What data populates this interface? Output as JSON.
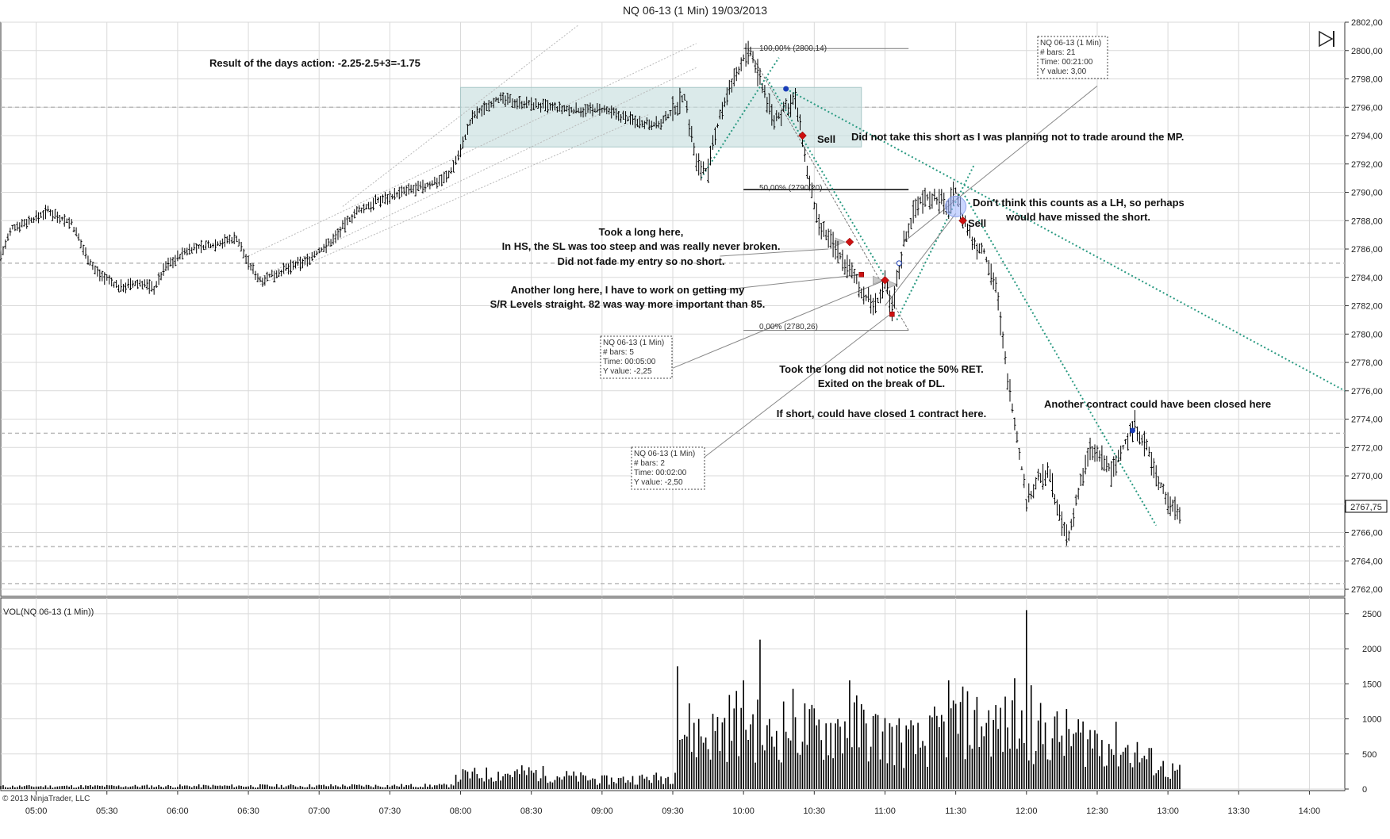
{
  "title": "NQ 06-13 (1 Min)  19/03/2013",
  "copyright": "© 2013 NinjaTrader, LLC",
  "volume_label": "VOL(NQ 06-13 (1 Min))",
  "last_price_label": "2767,75",
  "colors": {
    "bar": "#000000",
    "grid": "#d9d9d9",
    "zone": "#c7dede",
    "trend_dotted": "#2a9a82",
    "channel": "#b9b9b9",
    "sell_marker": "#cc1111",
    "blue_marker": "#1a3db8",
    "highlight": "#9fb4ff"
  },
  "annotations": {
    "result": "Result of the days action: -2.25-2.5+3=-1.75",
    "sell1": "Sell",
    "sell2": "Sell",
    "no_short": "Did not take this short as I was planning not to trade around the MP.",
    "lh_line1": "Don't think this counts as a LH, so perhaps",
    "lh_line2": "would have missed the short.",
    "long1_line1": "Took a long here,",
    "long1_line2": "In HS, the SL was too steep and was really never broken.",
    "long1_line3": "Did not fade my entry so no short.",
    "long2_line1": "Another long here, I have to work on getting my",
    "long2_line2": "S/R Levels straight. 82 was way more important than 85.",
    "long3_line1": "Took the long did not notice the 50% RET.",
    "long3_line2": "Exited on the break of DL.",
    "short_close": "If short, could have closed 1 contract here.",
    "another_contract": "Another contract could have been closed here"
  },
  "fib": {
    "level_100": "100,00% (2800,14)",
    "level_50": "50,00% (2790,20)",
    "level_0": "0,00% (2780,26)"
  },
  "info_boxes": [
    {
      "title": "NQ 06-13 (1 Min)",
      "bars": "# bars:   21",
      "time": "Time:    00:21:00",
      "yvalue": "Y value: 3,00"
    },
    {
      "title": "NQ 06-13 (1 Min)",
      "bars": "# bars:   5",
      "time": "Time:    00:05:00",
      "yvalue": "Y value: -2,25"
    },
    {
      "title": "NQ 06-13 (1 Min)",
      "bars": "# bars:   2",
      "time": "Time:    00:02:00",
      "yvalue": "Y value: -2,50"
    }
  ],
  "chart_data": [
    {
      "type": "ohlc",
      "title": "NQ 06-13 (1 Min)  19/03/2013",
      "x_ticks": [
        "05:00",
        "05:30",
        "06:00",
        "06:30",
        "07:00",
        "07:30",
        "08:00",
        "08:30",
        "09:00",
        "09:30",
        "10:00",
        "10:30",
        "11:00",
        "11:30",
        "12:00",
        "12:30",
        "13:00",
        "13:30",
        "14:00"
      ],
      "y_ticks": [
        "2762,00",
        "2764,00",
        "2766,00",
        "2768,00",
        "2770,00",
        "2772,00",
        "2774,00",
        "2776,00",
        "2778,00",
        "2780,00",
        "2782,00",
        "2784,00",
        "2786,00",
        "2788,00",
        "2790,00",
        "2792,00",
        "2794,00",
        "2796,00",
        "2798,00",
        "2800,00",
        "2802,00"
      ],
      "ylim": [
        2761.5,
        2802
      ],
      "xlim": [
        "04:45",
        "14:15"
      ],
      "horizontal_dashed_levels": [
        2796,
        2785,
        2773,
        2765,
        2762.4
      ],
      "price_path": [
        [
          "04:45",
          2785.5
        ],
        [
          "04:50",
          2787.5
        ],
        [
          "05:00",
          2788.2
        ],
        [
          "05:05",
          2788.7
        ],
        [
          "05:15",
          2787.8
        ],
        [
          "05:20",
          2786.0
        ],
        [
          "05:25",
          2784.5
        ],
        [
          "05:35",
          2783.3
        ],
        [
          "05:45",
          2783.6
        ],
        [
          "05:50",
          2783.2
        ],
        [
          "05:55",
          2784.8
        ],
        [
          "06:05",
          2786.0
        ],
        [
          "06:15",
          2786.3
        ],
        [
          "06:25",
          2786.8
        ],
        [
          "06:30",
          2785.0
        ],
        [
          "06:35",
          2783.8
        ],
        [
          "06:45",
          2784.5
        ],
        [
          "06:55",
          2785.2
        ],
        [
          "07:05",
          2786.5
        ],
        [
          "07:15",
          2788.5
        ],
        [
          "07:25",
          2789.4
        ],
        [
          "07:35",
          2790.0
        ],
        [
          "07:45",
          2790.4
        ],
        [
          "07:55",
          2791.2
        ],
        [
          "08:00",
          2793.0
        ],
        [
          "08:05",
          2795.3
        ],
        [
          "08:15",
          2796.6
        ],
        [
          "08:30",
          2796.2
        ],
        [
          "08:45",
          2795.8
        ],
        [
          "09:00",
          2795.8
        ],
        [
          "09:15",
          2795.0
        ],
        [
          "09:25",
          2794.8
        ],
        [
          "09:35",
          2796.8
        ],
        [
          "09:40",
          2792.0
        ],
        [
          "09:45",
          2791.5
        ],
        [
          "09:50",
          2795.5
        ],
        [
          "09:55",
          2797.5
        ],
        [
          "10:00",
          2799.5
        ],
        [
          "10:03",
          2799.8
        ],
        [
          "10:08",
          2797.5
        ],
        [
          "10:13",
          2795.0
        ],
        [
          "10:18",
          2796.0
        ],
        [
          "10:22",
          2796.5
        ],
        [
          "10:25",
          2793.5
        ],
        [
          "10:28",
          2790.5
        ],
        [
          "10:32",
          2787.5
        ],
        [
          "10:38",
          2786.3
        ],
        [
          "10:43",
          2785.0
        ],
        [
          "10:47",
          2784.0
        ],
        [
          "10:52",
          2782.5
        ],
        [
          "10:56",
          2782.0
        ],
        [
          "11:00",
          2783.5
        ],
        [
          "11:03",
          2781.8
        ],
        [
          "11:08",
          2786.5
        ],
        [
          "11:13",
          2789.0
        ],
        [
          "11:18",
          2789.8
        ],
        [
          "11:22",
          2789.5
        ],
        [
          "11:27",
          2789.0
        ],
        [
          "11:30",
          2790.2
        ],
        [
          "11:33",
          2788.2
        ],
        [
          "11:37",
          2786.5
        ],
        [
          "11:42",
          2785.8
        ],
        [
          "11:47",
          2783.5
        ],
        [
          "11:51",
          2778.0
        ],
        [
          "11:55",
          2774.0
        ],
        [
          "12:00",
          2768.2
        ],
        [
          "12:05",
          2769.8
        ],
        [
          "12:10",
          2770.0
        ],
        [
          "12:15",
          2766.5
        ],
        [
          "12:18",
          2765.5
        ],
        [
          "12:22",
          2769.0
        ],
        [
          "12:27",
          2771.8
        ],
        [
          "12:32",
          2771.2
        ],
        [
          "12:36",
          2770.2
        ],
        [
          "12:41",
          2772.0
        ],
        [
          "12:46",
          2773.7
        ],
        [
          "12:51",
          2772.0
        ],
        [
          "12:55",
          2770.0
        ],
        [
          "13:00",
          2768.2
        ],
        [
          "13:05",
          2767.6
        ]
      ],
      "annotated_points": {
        "sell_1": [
          "10:25",
          2794.0
        ],
        "sell_2": [
          "11:33",
          2788.0
        ],
        "long_entry_1": [
          "10:45",
          2786.5
        ],
        "long_entry_2": [
          "10:50",
          2784.2
        ],
        "long_entry_3": [
          "11:00",
          2783.8
        ],
        "long_exit_3": [
          "11:03",
          2781.4
        ],
        "blue_high": [
          "10:18",
          2797.3
        ],
        "blue_low": [
          "11:06",
          2785.0
        ],
        "blue_retest": [
          "12:45",
          2773.2
        ]
      },
      "fibonacci": [
        {
          "label": "100,00% (2800,14)",
          "value": 2800.14
        },
        {
          "label": "50,00% (2790,20)",
          "value": 2790.2
        },
        {
          "label": "0,00% (2780,26)",
          "value": 2780.26
        }
      ],
      "zone": {
        "from_time": "08:00",
        "to_time": "10:50",
        "from_price": 2793.2,
        "to_price": 2797.4
      }
    },
    {
      "type": "bar",
      "title": "VOL(NQ 06-13 (1 Min))",
      "y_ticks": [
        "0",
        "500",
        "1000",
        "1500",
        "2000",
        "2500"
      ],
      "ylim": [
        0,
        2600
      ],
      "volume_profile": [
        [
          "04:45",
          45
        ],
        [
          "07:55",
          60
        ],
        [
          "08:00",
          230
        ],
        [
          "08:30",
          280
        ],
        [
          "09:00",
          150
        ],
        [
          "09:30",
          200
        ],
        [
          "09:32",
          1050
        ],
        [
          "09:45",
          900
        ],
        [
          "10:00",
          1250
        ],
        [
          "10:10",
          850
        ],
        [
          "10:20",
          1150
        ],
        [
          "10:30",
          950
        ],
        [
          "10:45",
          1100
        ],
        [
          "11:00",
          900
        ],
        [
          "11:15",
          750
        ],
        [
          "11:30",
          1150
        ],
        [
          "11:45",
          1100
        ],
        [
          "12:00",
          1000
        ],
        [
          "12:15",
          900
        ],
        [
          "12:30",
          850
        ],
        [
          "12:45",
          650
        ],
        [
          "13:00",
          320
        ],
        [
          "13:05",
          300
        ]
      ],
      "volume_spikes": [
        [
          "09:32",
          1750
        ],
        [
          "10:07",
          2130
        ],
        [
          "10:45",
          1550
        ],
        [
          "11:27",
          1550
        ],
        [
          "11:55",
          1580
        ],
        [
          "12:00",
          2550
        ],
        [
          "12:02",
          1480
        ]
      ]
    }
  ]
}
